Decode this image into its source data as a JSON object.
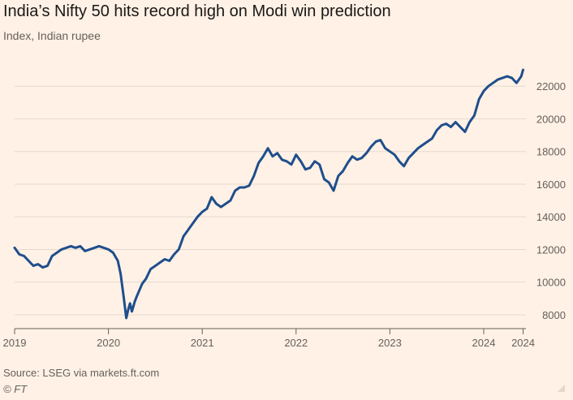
{
  "header": {
    "title": "India’s Nifty 50 hits record high on Modi win prediction",
    "subtitle": "Index, Indian rupee"
  },
  "footer": {
    "source": "Source: LSEG via markets.ft.com",
    "credit": "© FT"
  },
  "colors": {
    "background": "#FFF1E5",
    "line": "#1F4E8C",
    "grid": "#E6D9CE",
    "axis": "#66605C"
  },
  "chart_data": {
    "type": "line",
    "title": "India’s Nifty 50 hits record high on Modi win prediction",
    "ylabel": "Index, Indian rupee",
    "xlabel": "",
    "ylim": [
      7500,
      23500
    ],
    "xlim": [
      2019.0,
      2024.45
    ],
    "yticks": [
      8000,
      10000,
      12000,
      14000,
      16000,
      18000,
      20000,
      22000
    ],
    "ytick_labels": [
      "8000",
      "10000",
      "12000",
      "14000",
      "16000",
      "18000",
      "20000",
      "22000"
    ],
    "xticks": [
      {
        "value": 2019.0,
        "label": "2019"
      },
      {
        "value": 2020.0,
        "label": "2020"
      },
      {
        "value": 2021.0,
        "label": "2021"
      },
      {
        "value": 2022.0,
        "label": "2022"
      },
      {
        "value": 2023.0,
        "label": "2023"
      },
      {
        "value": 2024.0,
        "label": "2024"
      },
      {
        "value": 2024.42,
        "label": "2024"
      }
    ],
    "grid": true,
    "series": [
      {
        "name": "Nifty 50",
        "x": [
          2019.0,
          2019.05,
          2019.1,
          2019.15,
          2019.2,
          2019.25,
          2019.3,
          2019.35,
          2019.4,
          2019.45,
          2019.5,
          2019.55,
          2019.6,
          2019.65,
          2019.7,
          2019.75,
          2019.8,
          2019.85,
          2019.9,
          2019.95,
          2020.0,
          2020.05,
          2020.1,
          2020.13,
          2020.16,
          2020.19,
          2020.21,
          2020.23,
          2020.25,
          2020.28,
          2020.3,
          2020.33,
          2020.36,
          2020.4,
          2020.45,
          2020.5,
          2020.55,
          2020.6,
          2020.65,
          2020.7,
          2020.75,
          2020.8,
          2020.85,
          2020.9,
          2020.95,
          2021.0,
          2021.05,
          2021.1,
          2021.15,
          2021.2,
          2021.25,
          2021.3,
          2021.35,
          2021.4,
          2021.45,
          2021.5,
          2021.55,
          2021.6,
          2021.65,
          2021.7,
          2021.75,
          2021.8,
          2021.85,
          2021.9,
          2021.95,
          2022.0,
          2022.05,
          2022.1,
          2022.15,
          2022.2,
          2022.25,
          2022.3,
          2022.35,
          2022.4,
          2022.45,
          2022.5,
          2022.55,
          2022.6,
          2022.65,
          2022.7,
          2022.75,
          2022.8,
          2022.85,
          2022.9,
          2022.95,
          2023.0,
          2023.05,
          2023.1,
          2023.15,
          2023.2,
          2023.25,
          2023.3,
          2023.35,
          2023.4,
          2023.45,
          2023.5,
          2023.55,
          2023.6,
          2023.65,
          2023.7,
          2023.75,
          2023.8,
          2023.85,
          2023.9,
          2023.95,
          2024.0,
          2024.05,
          2024.1,
          2024.15,
          2024.2,
          2024.25,
          2024.3,
          2024.35,
          2024.4,
          2024.42
        ],
        "values": [
          12100,
          11700,
          11600,
          11300,
          11000,
          11100,
          10900,
          11000,
          11600,
          11800,
          12000,
          12100,
          12200,
          12100,
          12200,
          11900,
          12000,
          12100,
          12200,
          12100,
          12000,
          11800,
          11300,
          10500,
          9200,
          7800,
          8300,
          8700,
          8200,
          8800,
          9100,
          9500,
          9900,
          10200,
          10800,
          11000,
          11200,
          11400,
          11300,
          11700,
          12000,
          12800,
          13200,
          13600,
          14000,
          14300,
          14500,
          15200,
          14800,
          14600,
          14800,
          15000,
          15600,
          15800,
          15800,
          15900,
          16500,
          17300,
          17700,
          18200,
          17700,
          17900,
          17500,
          17400,
          17200,
          17800,
          17400,
          16900,
          17000,
          17400,
          17200,
          16300,
          16100,
          15600,
          16500,
          16800,
          17300,
          17700,
          17500,
          17600,
          17900,
          18300,
          18600,
          18700,
          18200,
          18000,
          17800,
          17400,
          17100,
          17600,
          17900,
          18200,
          18400,
          18600,
          18800,
          19300,
          19600,
          19700,
          19500,
          19800,
          19500,
          19200,
          19800,
          20200,
          21200,
          21700,
          22000,
          22200,
          22400,
          22500,
          22600,
          22500,
          22200,
          22600,
          23000
        ]
      }
    ]
  }
}
